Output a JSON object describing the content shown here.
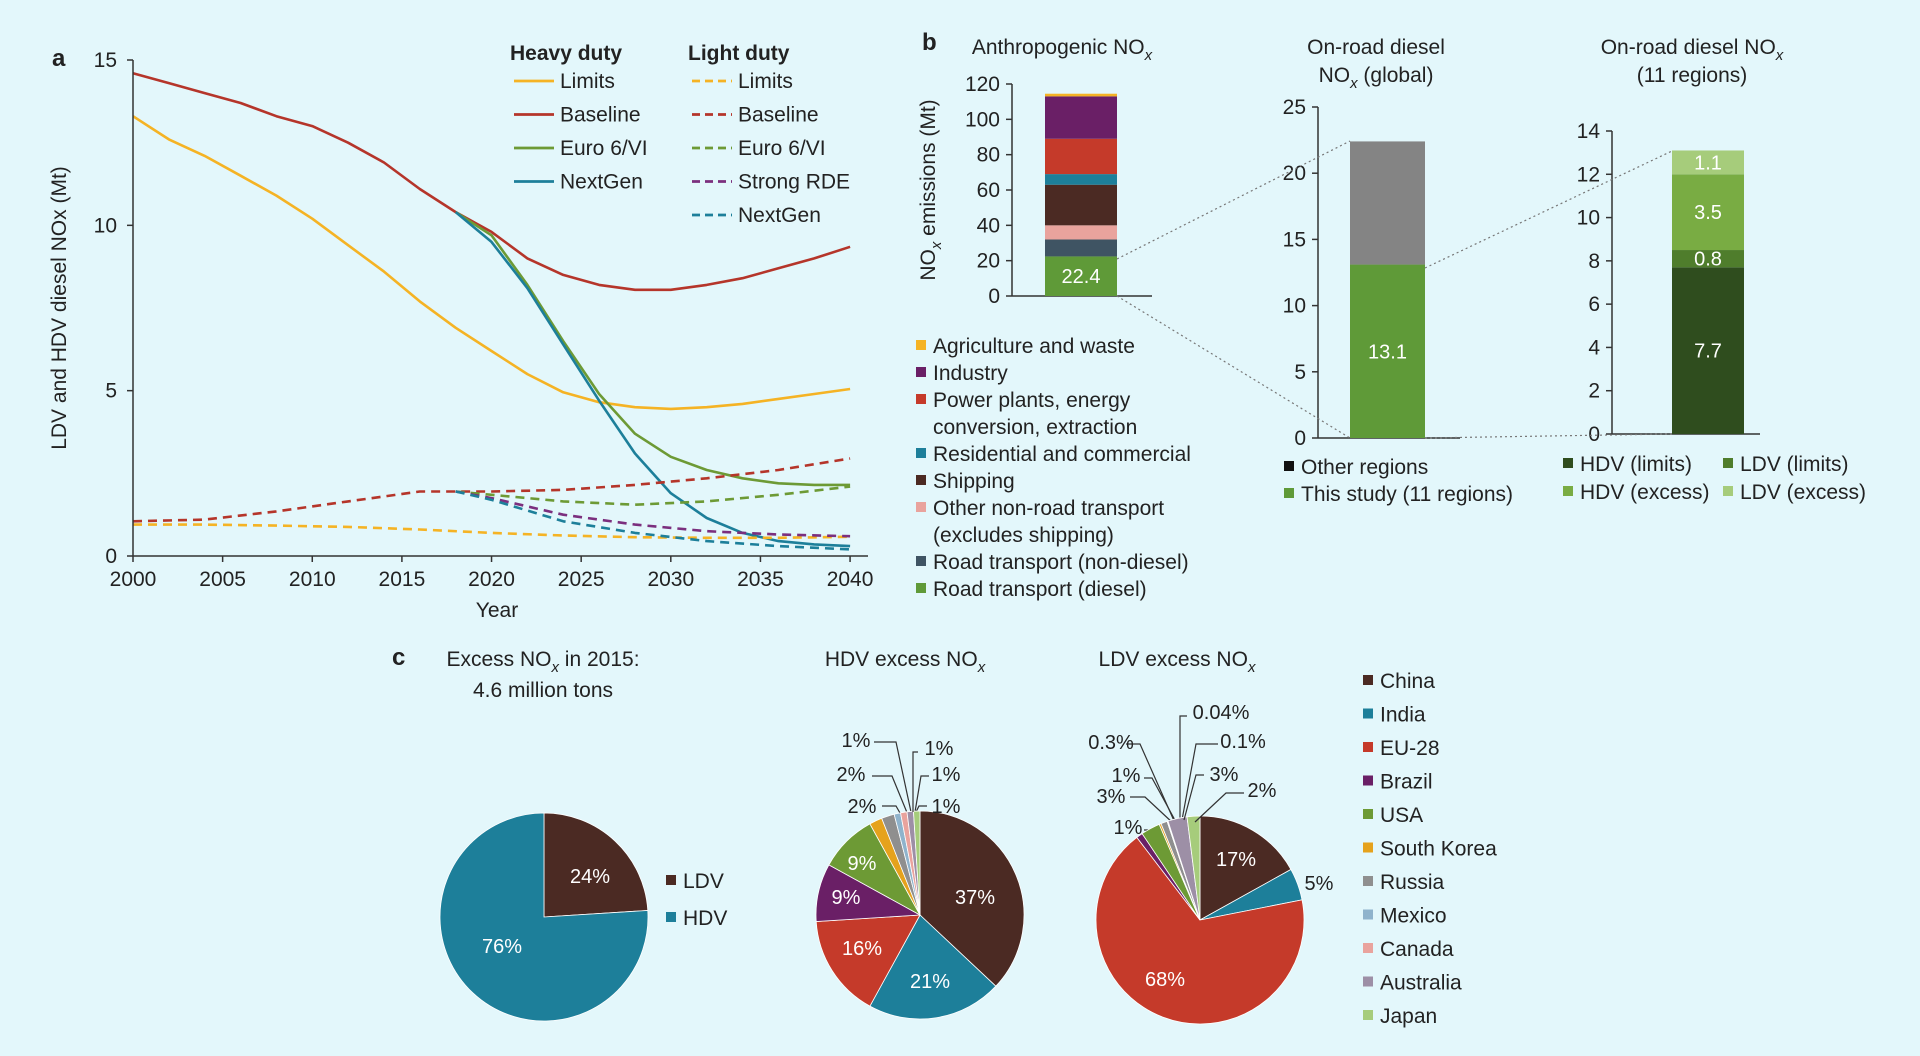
{
  "panel_letters": {
    "a": "a",
    "b": "b",
    "c": "c"
  },
  "chart_data": [
    {
      "id": "a",
      "type": "line",
      "xlabel": "Year",
      "ylabel": "LDV and HDV diesel NOx (Mt)",
      "xlim": [
        2000,
        2041
      ],
      "ylim": [
        0,
        15
      ],
      "xticks": [
        2000,
        2005,
        2010,
        2015,
        2020,
        2025,
        2030,
        2035,
        2040
      ],
      "yticks": [
        0,
        5,
        10,
        15
      ],
      "legend_groups": [
        {
          "title": "Heavy duty",
          "entries": [
            "Limits",
            "Baseline",
            "Euro 6/VI",
            "NextGen"
          ]
        },
        {
          "title": "Light duty",
          "entries": [
            "Limits",
            "Baseline",
            "Euro 6/VI",
            "Strong RDE",
            "NextGen"
          ]
        }
      ],
      "series": [
        {
          "name": "Limits",
          "group": "Heavy duty",
          "color": "#f5b324",
          "dash": false,
          "points": [
            [
              2000,
              13.3
            ],
            [
              2002,
              12.6
            ],
            [
              2004,
              12.1
            ],
            [
              2006,
              11.5
            ],
            [
              2008,
              10.9
            ],
            [
              2010,
              10.2
            ],
            [
              2012,
              9.4
            ],
            [
              2014,
              8.6
            ],
            [
              2016,
              7.7
            ],
            [
              2018,
              6.9
            ],
            [
              2020,
              6.2
            ],
            [
              2022,
              5.5
            ],
            [
              2024,
              4.95
            ],
            [
              2026,
              4.65
            ],
            [
              2028,
              4.5
            ],
            [
              2030,
              4.45
            ],
            [
              2032,
              4.5
            ],
            [
              2034,
              4.6
            ],
            [
              2036,
              4.75
            ],
            [
              2038,
              4.9
            ],
            [
              2040,
              5.05
            ]
          ]
        },
        {
          "name": "Baseline",
          "group": "Heavy duty",
          "color": "#b5352a",
          "dash": false,
          "points": [
            [
              2000,
              14.6
            ],
            [
              2002,
              14.3
            ],
            [
              2004,
              14.0
            ],
            [
              2006,
              13.7
            ],
            [
              2008,
              13.3
            ],
            [
              2010,
              13.0
            ],
            [
              2012,
              12.5
            ],
            [
              2014,
              11.9
            ],
            [
              2016,
              11.1
            ],
            [
              2018,
              10.4
            ],
            [
              2020,
              9.8
            ],
            [
              2022,
              9.0
            ],
            [
              2024,
              8.5
            ],
            [
              2026,
              8.2
            ],
            [
              2028,
              8.05
            ],
            [
              2030,
              8.05
            ],
            [
              2032,
              8.2
            ],
            [
              2034,
              8.4
            ],
            [
              2036,
              8.7
            ],
            [
              2038,
              9.0
            ],
            [
              2040,
              9.35
            ]
          ]
        },
        {
          "name": "Euro 6/VI",
          "group": "Heavy duty",
          "color": "#6d9a35",
          "dash": false,
          "points": [
            [
              2018,
              10.4
            ],
            [
              2020,
              9.7
            ],
            [
              2022,
              8.2
            ],
            [
              2024,
              6.5
            ],
            [
              2026,
              4.9
            ],
            [
              2028,
              3.7
            ],
            [
              2030,
              3.0
            ],
            [
              2032,
              2.6
            ],
            [
              2034,
              2.35
            ],
            [
              2036,
              2.2
            ],
            [
              2038,
              2.15
            ],
            [
              2040,
              2.15
            ]
          ]
        },
        {
          "name": "NextGen",
          "group": "Heavy duty",
          "color": "#1d7f9a",
          "dash": false,
          "points": [
            [
              2018,
              10.4
            ],
            [
              2020,
              9.5
            ],
            [
              2022,
              8.1
            ],
            [
              2024,
              6.4
            ],
            [
              2026,
              4.7
            ],
            [
              2028,
              3.1
            ],
            [
              2030,
              1.9
            ],
            [
              2032,
              1.15
            ],
            [
              2034,
              0.7
            ],
            [
              2036,
              0.45
            ],
            [
              2038,
              0.35
            ],
            [
              2040,
              0.3
            ]
          ]
        },
        {
          "name": "Limits",
          "group": "Light duty",
          "color": "#f5b324",
          "dash": true,
          "points": [
            [
              2000,
              0.95
            ],
            [
              2004,
              0.95
            ],
            [
              2008,
              0.92
            ],
            [
              2012,
              0.88
            ],
            [
              2016,
              0.8
            ],
            [
              2020,
              0.7
            ],
            [
              2024,
              0.62
            ],
            [
              2028,
              0.57
            ],
            [
              2032,
              0.55
            ],
            [
              2036,
              0.55
            ],
            [
              2040,
              0.58
            ]
          ]
        },
        {
          "name": "Baseline",
          "group": "Light duty",
          "color": "#b5352a",
          "dash": true,
          "points": [
            [
              2000,
              1.05
            ],
            [
              2004,
              1.1
            ],
            [
              2008,
              1.35
            ],
            [
              2012,
              1.65
            ],
            [
              2016,
              1.95
            ],
            [
              2020,
              1.95
            ],
            [
              2024,
              2.0
            ],
            [
              2028,
              2.15
            ],
            [
              2032,
              2.35
            ],
            [
              2036,
              2.6
            ],
            [
              2040,
              2.95
            ]
          ]
        },
        {
          "name": "Euro 6/VI",
          "group": "Light duty",
          "color": "#6d9a35",
          "dash": true,
          "points": [
            [
              2018,
              1.95
            ],
            [
              2020,
              1.85
            ],
            [
              2024,
              1.65
            ],
            [
              2028,
              1.55
            ],
            [
              2032,
              1.65
            ],
            [
              2036,
              1.85
            ],
            [
              2040,
              2.1
            ]
          ]
        },
        {
          "name": "Strong RDE",
          "group": "Light duty",
          "color": "#7b2f7e",
          "dash": true,
          "points": [
            [
              2018,
              1.95
            ],
            [
              2020,
              1.75
            ],
            [
              2024,
              1.25
            ],
            [
              2028,
              0.95
            ],
            [
              2032,
              0.75
            ],
            [
              2036,
              0.65
            ],
            [
              2040,
              0.6
            ]
          ]
        },
        {
          "name": "NextGen",
          "group": "Light duty",
          "color": "#1d7f9a",
          "dash": true,
          "points": [
            [
              2018,
              1.95
            ],
            [
              2020,
              1.7
            ],
            [
              2024,
              1.05
            ],
            [
              2028,
              0.7
            ],
            [
              2032,
              0.45
            ],
            [
              2036,
              0.3
            ],
            [
              2040,
              0.2
            ]
          ]
        }
      ]
    },
    {
      "id": "b1",
      "type": "bar",
      "title": "Anthropogenic NOx",
      "ylabel": "NOx emissions (Mt)",
      "ylim": [
        0,
        120
      ],
      "yticks": [
        0,
        20,
        40,
        60,
        80,
        100,
        120
      ],
      "segments": [
        {
          "name": "Road transport (diesel)",
          "value": 22.4,
          "color": "#5f9a38",
          "label": "22.4"
        },
        {
          "name": "Road transport (non-diesel)",
          "value": 9.6,
          "color": "#3f5463"
        },
        {
          "name": "Other non-road transport (excludes shipping)",
          "value": 8.0,
          "color": "#e9a39d"
        },
        {
          "name": "Shipping",
          "value": 23.0,
          "color": "#4b2a23"
        },
        {
          "name": "Residential and commercial",
          "value": 6.0,
          "color": "#1d7f9a"
        },
        {
          "name": "Power plants, energy conversion, extraction",
          "value": 20.0,
          "color": "#c53a2a"
        },
        {
          "name": "Industry",
          "value": 24.0,
          "color": "#6a1f66"
        },
        {
          "name": "Agriculture and waste",
          "value": 1.5,
          "color": "#f5b324"
        }
      ],
      "legend": [
        "Agriculture and waste",
        "Industry",
        "Power plants, energy conversion, extraction",
        "Residential and commercial",
        "Shipping",
        "Other non-road transport (excludes shipping)",
        "Road transport (non-diesel)",
        "Road transport (diesel)"
      ]
    },
    {
      "id": "b2",
      "type": "bar",
      "title": "On-road diesel NOx (global)",
      "ylim": [
        0,
        25
      ],
      "yticks": [
        0,
        5,
        10,
        15,
        20,
        25
      ],
      "segments": [
        {
          "name": "This study (11 regions)",
          "value": 13.1,
          "color": "#5f9a38",
          "label": "13.1"
        },
        {
          "name": "Other regions",
          "value": 9.3,
          "color": "#848484"
        }
      ],
      "legend": [
        "Other regions",
        "This study (11 regions)"
      ]
    },
    {
      "id": "b3",
      "type": "bar",
      "title": "On-road diesel NOx (11 regions)",
      "ylim": [
        0,
        14
      ],
      "yticks": [
        0,
        2,
        4,
        6,
        8,
        10,
        12,
        14
      ],
      "segments": [
        {
          "name": "HDV (limits)",
          "value": 7.7,
          "color": "#2f4d1e",
          "label": "7.7"
        },
        {
          "name": "LDV (limits)",
          "value": 0.8,
          "color": "#4f7d2c",
          "label": "0.8"
        },
        {
          "name": "HDV (excess)",
          "value": 3.5,
          "color": "#79ac43",
          "label": "3.5"
        },
        {
          "name": "LDV (excess)",
          "value": 1.1,
          "color": "#a6cc7b",
          "label": "1.1"
        }
      ],
      "legend": [
        "HDV (limits)",
        "LDV (limits)",
        "HDV (excess)",
        "LDV (excess)"
      ]
    },
    {
      "id": "c1",
      "type": "pie",
      "title": "Excess NOx in 2015:",
      "subtitle": "4.6 million tons",
      "slices": [
        {
          "name": "LDV",
          "value": 24,
          "label": "24%",
          "color": "#4b2a23"
        },
        {
          "name": "HDV",
          "value": 76,
          "label": "76%",
          "color": "#1d7f9a"
        }
      ]
    },
    {
      "id": "c2",
      "type": "pie",
      "title": "HDV excess NOx",
      "slices": [
        {
          "name": "China",
          "value": 37,
          "label": "37%"
        },
        {
          "name": "India",
          "value": 21,
          "label": "21%"
        },
        {
          "name": "EU-28",
          "value": 16,
          "label": "16%"
        },
        {
          "name": "Brazil",
          "value": 9,
          "label": "9%"
        },
        {
          "name": "USA",
          "value": 9,
          "label": "9%"
        },
        {
          "name": "South Korea",
          "value": 2,
          "label": "2%"
        },
        {
          "name": "Russia",
          "value": 2,
          "label": "2%"
        },
        {
          "name": "Mexico",
          "value": 1,
          "label": "1%"
        },
        {
          "name": "Canada",
          "value": 1,
          "label": "1%"
        },
        {
          "name": "Australia",
          "value": 1,
          "label": "1%"
        },
        {
          "name": "Japan",
          "value": 1,
          "label": "1%"
        }
      ]
    },
    {
      "id": "c3",
      "type": "pie",
      "title": "LDV excess NOx",
      "slices": [
        {
          "name": "China",
          "value": 17,
          "label": "17%"
        },
        {
          "name": "India",
          "value": 5,
          "label": "5%"
        },
        {
          "name": "EU-28",
          "value": 68,
          "label": "68%"
        },
        {
          "name": "Brazil",
          "value": 1,
          "label": "1%"
        },
        {
          "name": "USA",
          "value": 3,
          "label": "3%"
        },
        {
          "name": "South Korea",
          "value": 0.3,
          "label": "0.3%"
        },
        {
          "name": "Russia",
          "value": 1,
          "label": "1%"
        },
        {
          "name": "Mexico",
          "value": 0.04,
          "label": "0.04%"
        },
        {
          "name": "Canada",
          "value": 0.1,
          "label": "0.1%"
        },
        {
          "name": "Australia",
          "value": 3,
          "label": "3%"
        },
        {
          "name": "Japan",
          "value": 2,
          "label": "2%"
        }
      ]
    }
  ],
  "country_legend": [
    {
      "name": "China",
      "color": "#4b2a23"
    },
    {
      "name": "India",
      "color": "#1d7f9a"
    },
    {
      "name": "EU-28",
      "color": "#c53a2a"
    },
    {
      "name": "Brazil",
      "color": "#6a1f66"
    },
    {
      "name": "USA",
      "color": "#6d9a35"
    },
    {
      "name": "South Korea",
      "color": "#e5a21c"
    },
    {
      "name": "Russia",
      "color": "#8f8f8f"
    },
    {
      "name": "Mexico",
      "color": "#8fb3cc"
    },
    {
      "name": "Canada",
      "color": "#e9a39d"
    },
    {
      "name": "Australia",
      "color": "#9d8fa6"
    },
    {
      "name": "Japan",
      "color": "#a6cc7b"
    }
  ]
}
